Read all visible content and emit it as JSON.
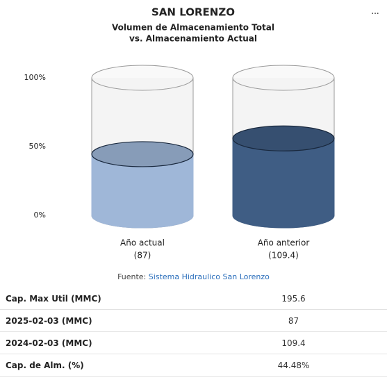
{
  "chart_data": {
    "type": "cylinder",
    "title": "SAN LORENZO",
    "subtitle": [
      "Volumen de Almacenamiento Total",
      "vs. Almacenamiento Actual"
    ],
    "categories": [
      "Año actual",
      "Año anterior"
    ],
    "values": [
      87,
      109.4
    ],
    "value_labels": [
      "(87)",
      "(109.4)"
    ],
    "colors": [
      "#9fb7d8",
      "#3f5d84"
    ],
    "ylim": [
      0,
      195.6
    ],
    "yticks": [
      {
        "value": 0,
        "label": "0%"
      },
      {
        "value": 97.8,
        "label": "50%"
      },
      {
        "value": 195.6,
        "label": "100%"
      }
    ]
  },
  "source": {
    "label": "Fuente:",
    "link": "Sistema Hidraulico San Lorenzo"
  },
  "table": {
    "rows": [
      [
        "Cap. Max Util (MMC)",
        "195.6"
      ],
      [
        "2025-02-03 (MMC)",
        "87"
      ],
      [
        "2024-02-03 (MMC)",
        "109.4"
      ],
      [
        "Cap. de Alm. (%)",
        "44.48%"
      ]
    ]
  }
}
